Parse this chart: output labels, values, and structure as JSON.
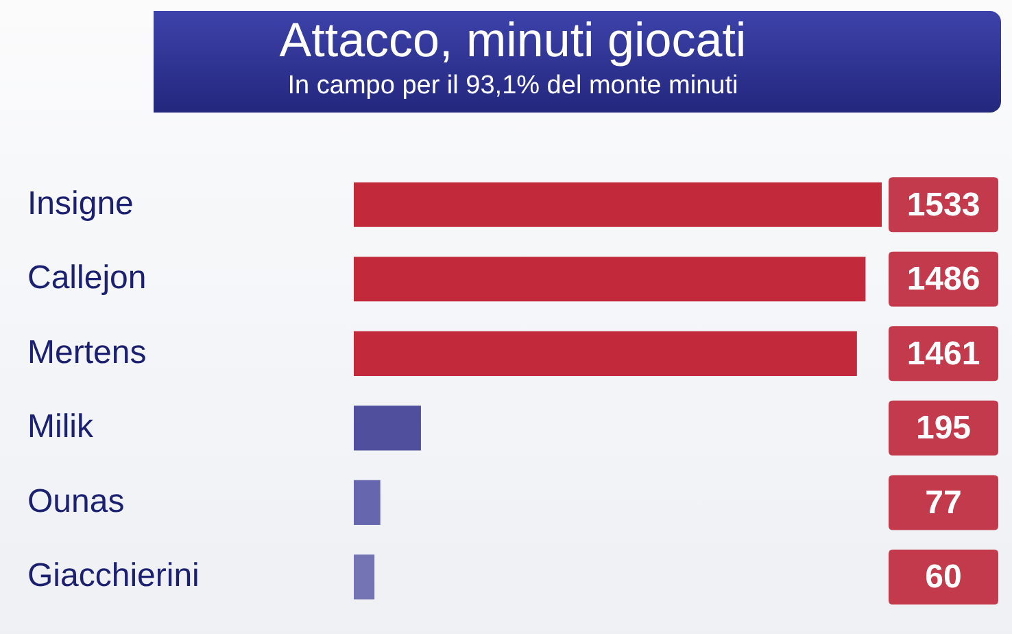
{
  "chart_data": {
    "type": "bar",
    "orientation": "horizontal",
    "title": "Attacco, minuti giocati",
    "subtitle": "In campo per il 93,1% del monte minuti",
    "categories": [
      "Insigne",
      "Callejon",
      "Mertens",
      "Milik",
      "Ounas",
      "Giacchierini"
    ],
    "values": [
      1533,
      1486,
      1461,
      195,
      77,
      60
    ],
    "colors": [
      "#c2293a",
      "#c2293a",
      "#c2293a",
      "#4f4f9e",
      "#6666ae",
      "#7474b4"
    ],
    "data_labels": true
  }
}
